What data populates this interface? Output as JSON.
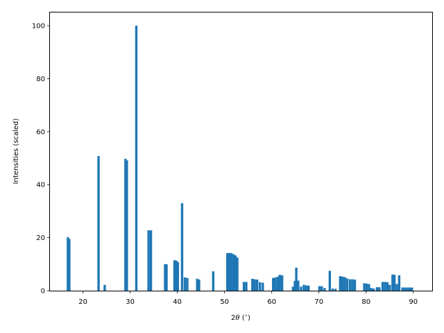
{
  "chart_data": {
    "type": "bar",
    "xlabel_parts": {
      "pre": "2",
      "theta": "θ",
      "unit_open": " (",
      "degree": "∘",
      "unit_close": ")"
    },
    "ylabel": "Intensities (scaled)",
    "xlim": [
      13,
      94
    ],
    "ylim": [
      0,
      105
    ],
    "x_ticks": [
      20,
      30,
      40,
      50,
      60,
      70,
      80,
      90
    ],
    "y_ticks": [
      0,
      20,
      40,
      60,
      80,
      100
    ],
    "bar_width": 0.5,
    "bar_color": "#1f77b4",
    "grid": false,
    "bars": [
      {
        "x": 16.8,
        "y": 20.2
      },
      {
        "x": 17.1,
        "y": 19.5
      },
      {
        "x": 23.3,
        "y": 50.8
      },
      {
        "x": 24.6,
        "y": 2.2
      },
      {
        "x": 29.0,
        "y": 49.8
      },
      {
        "x": 29.3,
        "y": 49.2
      },
      {
        "x": 31.3,
        "y": 100.0
      },
      {
        "x": 33.9,
        "y": 22.8
      },
      {
        "x": 34.4,
        "y": 22.8
      },
      {
        "x": 37.4,
        "y": 10.0
      },
      {
        "x": 37.7,
        "y": 10.0
      },
      {
        "x": 39.4,
        "y": 11.5
      },
      {
        "x": 39.8,
        "y": 11.3
      },
      {
        "x": 40.1,
        "y": 10.8
      },
      {
        "x": 41.0,
        "y": 33.0
      },
      {
        "x": 41.6,
        "y": 5.0
      },
      {
        "x": 42.1,
        "y": 4.8
      },
      {
        "x": 44.2,
        "y": 4.5
      },
      {
        "x": 44.6,
        "y": 4.2
      },
      {
        "x": 47.6,
        "y": 7.3
      },
      {
        "x": 50.6,
        "y": 14.2
      },
      {
        "x": 51.0,
        "y": 14.2
      },
      {
        "x": 51.4,
        "y": 14.2
      },
      {
        "x": 51.9,
        "y": 13.8
      },
      {
        "x": 52.3,
        "y": 13.3
      },
      {
        "x": 52.7,
        "y": 12.5
      },
      {
        "x": 54.1,
        "y": 3.3
      },
      {
        "x": 54.6,
        "y": 3.3
      },
      {
        "x": 55.9,
        "y": 4.5
      },
      {
        "x": 56.4,
        "y": 4.3
      },
      {
        "x": 56.9,
        "y": 4.2
      },
      {
        "x": 57.5,
        "y": 3.2
      },
      {
        "x": 58.1,
        "y": 3.0
      },
      {
        "x": 60.3,
        "y": 4.8
      },
      {
        "x": 60.8,
        "y": 5.0
      },
      {
        "x": 61.3,
        "y": 5.3
      },
      {
        "x": 61.7,
        "y": 6.0
      },
      {
        "x": 62.2,
        "y": 5.8
      },
      {
        "x": 64.5,
        "y": 1.5
      },
      {
        "x": 64.9,
        "y": 3.7
      },
      {
        "x": 65.2,
        "y": 8.7
      },
      {
        "x": 65.6,
        "y": 3.8
      },
      {
        "x": 66.2,
        "y": 1.5
      },
      {
        "x": 66.8,
        "y": 2.2
      },
      {
        "x": 67.3,
        "y": 2.0
      },
      {
        "x": 67.8,
        "y": 1.9
      },
      {
        "x": 70.1,
        "y": 1.7
      },
      {
        "x": 70.6,
        "y": 1.7
      },
      {
        "x": 71.2,
        "y": 1.0
      },
      {
        "x": 72.3,
        "y": 7.5
      },
      {
        "x": 72.9,
        "y": 0.8
      },
      {
        "x": 73.5,
        "y": 0.7
      },
      {
        "x": 74.5,
        "y": 5.5
      },
      {
        "x": 75.0,
        "y": 5.3
      },
      {
        "x": 75.5,
        "y": 5.1
      },
      {
        "x": 76.0,
        "y": 4.6
      },
      {
        "x": 76.6,
        "y": 4.3
      },
      {
        "x": 77.1,
        "y": 4.3
      },
      {
        "x": 77.6,
        "y": 4.2
      },
      {
        "x": 79.6,
        "y": 2.8
      },
      {
        "x": 80.1,
        "y": 2.7
      },
      {
        "x": 80.6,
        "y": 2.5
      },
      {
        "x": 81.1,
        "y": 1.0
      },
      {
        "x": 81.6,
        "y": 0.8
      },
      {
        "x": 82.3,
        "y": 1.3
      },
      {
        "x": 82.8,
        "y": 1.3
      },
      {
        "x": 83.5,
        "y": 3.3
      },
      {
        "x": 84.0,
        "y": 3.3
      },
      {
        "x": 84.5,
        "y": 3.2
      },
      {
        "x": 85.0,
        "y": 2.2
      },
      {
        "x": 85.6,
        "y": 6.1
      },
      {
        "x": 86.0,
        "y": 6.0
      },
      {
        "x": 86.5,
        "y": 2.5
      },
      {
        "x": 87.0,
        "y": 5.8
      },
      {
        "x": 87.7,
        "y": 1.2
      },
      {
        "x": 88.2,
        "y": 1.2
      },
      {
        "x": 88.7,
        "y": 1.2
      },
      {
        "x": 89.2,
        "y": 1.2
      },
      {
        "x": 89.7,
        "y": 1.2
      }
    ]
  }
}
